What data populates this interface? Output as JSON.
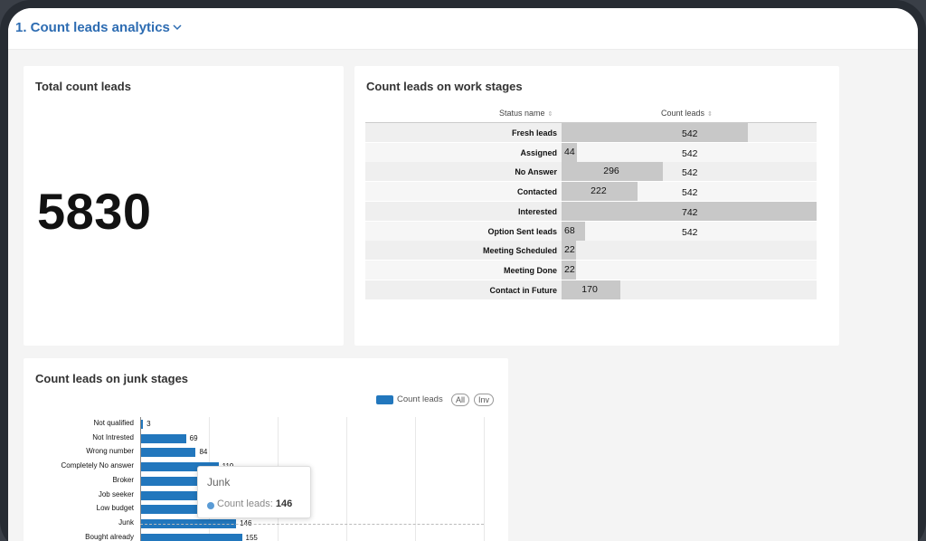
{
  "header": {
    "title": "1. Count leads analytics"
  },
  "total_card": {
    "title": "Total count leads",
    "value": "5830"
  },
  "work_stages": {
    "title": "Count leads on work stages",
    "columns": [
      "Status name",
      "Count leads"
    ],
    "rows": [
      {
        "label": "Fresh leads",
        "first": null,
        "second": "542"
      },
      {
        "label": "Assigned",
        "first": "44",
        "second": "542"
      },
      {
        "label": "No Answer",
        "first": "296",
        "second": "542"
      },
      {
        "label": "Contacted",
        "first": "222",
        "second": "542"
      },
      {
        "label": "Interested",
        "first": null,
        "second": "742"
      },
      {
        "label": "Option Sent leads",
        "first": "68",
        "second": "542"
      },
      {
        "label": "Meeting Scheduled",
        "first": "22",
        "second": null
      },
      {
        "label": "Meeting Done",
        "first": "22",
        "second": null
      },
      {
        "label": "Contact in Future",
        "first": "170",
        "second": null
      }
    ]
  },
  "junk_stages": {
    "title": "Count leads on junk stages",
    "legend": {
      "label": "Count leads",
      "all": "All",
      "inv": "Inv"
    },
    "tooltip": {
      "title": "Junk",
      "series": "Count leads:",
      "value": "146"
    }
  },
  "chart_data": {
    "type": "bar",
    "orientation": "horizontal",
    "categories": [
      "Not qualified",
      "Not Intrested",
      "Wrong number",
      "Completely No answer",
      "Broker",
      "Job seeker",
      "Low budget",
      "Junk",
      "Bought already"
    ],
    "series": [
      {
        "name": "Count leads",
        "values": [
          3,
          69,
          84,
          119,
          null,
          null,
          null,
          146,
          155
        ]
      }
    ],
    "color": "#2277bd"
  },
  "colors": {
    "accent": "#2d6cb2",
    "bar": "#2277bd",
    "table_bar": "#c8c8c8"
  }
}
